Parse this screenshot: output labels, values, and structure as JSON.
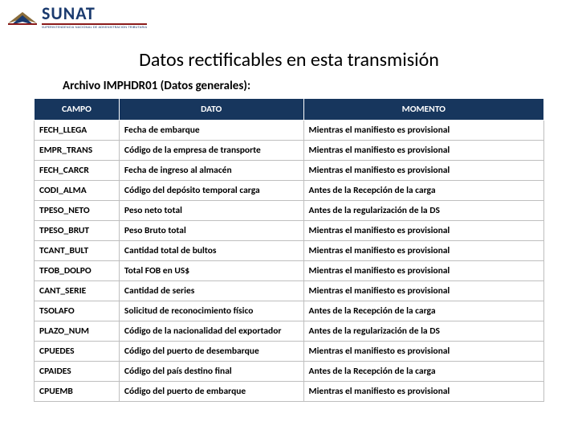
{
  "logo": {
    "name": "SUNAT",
    "subtitle": "SUPERINTENDENCIA NACIONAL DE ADMINISTRACION TRIBUTARIA",
    "name_color": "#1a3a6e",
    "underline_color": "#8a1b1b"
  },
  "title": "Datos rectificables en esta transmisión",
  "subtitle": "Archivo IMPHDR01 (Datos generales):",
  "table": {
    "header_bg": "#17365d",
    "header_fg": "#ffffff",
    "border_color": "#bfbfbf",
    "columns": [
      "CAMPO",
      "DATO",
      "MOMENTO"
    ],
    "rows": [
      [
        "FECH_LLEGA",
        "Fecha de embarque",
        "Mientras el manifiesto es provisional"
      ],
      [
        "EMPR_TRANS",
        "Código de la empresa de transporte",
        "Mientras el manifiesto es provisional"
      ],
      [
        "FECH_CARCR",
        "Fecha de ingreso al almacén",
        "Mientras el manifiesto es provisional"
      ],
      [
        "CODI_ALMA",
        "Código del depósito temporal carga",
        "Antes de la Recepción de la carga"
      ],
      [
        "TPESO_NETO",
        "Peso neto total",
        "Antes de la regularización de la DS"
      ],
      [
        "TPESO_BRUT",
        "Peso Bruto total",
        "Mientras el manifiesto es provisional"
      ],
      [
        "TCANT_BULT",
        "Cantidad total de bultos",
        "Mientras el manifiesto es provisional"
      ],
      [
        "TFOB_DOLPO",
        "Total FOB en US$",
        "Mientras el manifiesto es provisional"
      ],
      [
        "CANT_SERIE",
        "Cantidad de series",
        "Mientras el manifiesto es provisional"
      ],
      [
        "TSOLAFO",
        "Solicitud de reconocimiento físico",
        "Antes de la Recepción de la carga"
      ],
      [
        "PLAZO_NUM",
        "Código de la nacionalidad del exportador",
        "Antes de la regularización de la DS"
      ],
      [
        "CPUEDES",
        "Código del puerto de desembarque",
        "Mientras el manifiesto es provisional"
      ],
      [
        "CPAIDES",
        "Código del país destino final",
        "Antes de la Recepción de la carga"
      ],
      [
        "CPUEMB",
        "Código del puerto de embarque",
        "Mientras el manifiesto es provisional"
      ]
    ]
  }
}
